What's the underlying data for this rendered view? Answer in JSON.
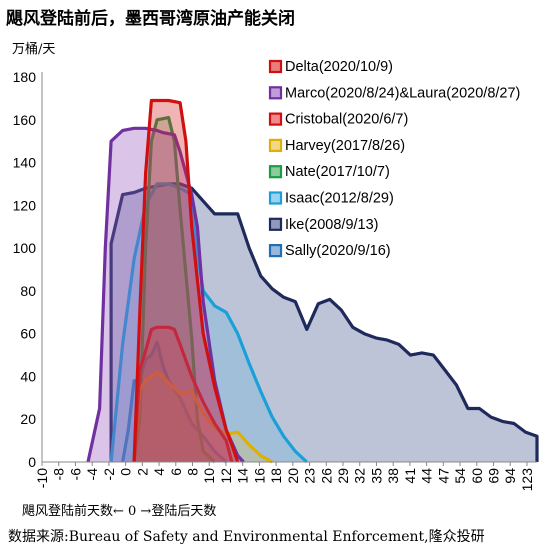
{
  "title": "飓风登陆前后，墨西哥湾原油产能关闭",
  "unit_label": "万桶/天",
  "x_axis_caption": "飓风登陆前天数← 0 →登陆后天数",
  "source": "数据来源:Bureau of Safety and Environmental Enforcement,隆众投研",
  "chart_data": {
    "type": "area",
    "title": "飓风登陆前后，墨西哥湾原油产能关闭",
    "ylabel": "万桶/天",
    "xlabel": "飓风登陆前天数← 0 →登陆后天数",
    "ylim": [
      0,
      180
    ],
    "y_ticks": [
      0,
      20,
      40,
      60,
      80,
      100,
      120,
      140,
      160,
      180
    ],
    "x_tick_labels": [
      "-10",
      "-8",
      "-6",
      "-4",
      "-2",
      "0",
      "2",
      "4",
      "6",
      "8",
      "10",
      "12",
      "14",
      "16",
      "18",
      "20",
      "23",
      "26",
      "29",
      "32",
      "35",
      "38",
      "41",
      "44",
      "47",
      "54",
      "60",
      "69",
      "94",
      "123"
    ],
    "x_positions": [
      -10,
      -9,
      -8,
      -7,
      -6,
      -5,
      -4,
      -3,
      -2,
      -1,
      0,
      1,
      2,
      3,
      4,
      5,
      6,
      7,
      8,
      9,
      10,
      11,
      12,
      13,
      14,
      15,
      16,
      17,
      18,
      19,
      20,
      21,
      22,
      23,
      24,
      25,
      26,
      27,
      28,
      29,
      30,
      31,
      32,
      33,
      34,
      35,
      36,
      37,
      38,
      39,
      40,
      41,
      42,
      43,
      44,
      45,
      46,
      47,
      48,
      49,
      50,
      51,
      52,
      53,
      54,
      55,
      56,
      57,
      58,
      59,
      60,
      61,
      62,
      63,
      64,
      65,
      66,
      67,
      68,
      69,
      70,
      71,
      72,
      73,
      74,
      75,
      76,
      77,
      78,
      79,
      80,
      81,
      82,
      83,
      84,
      85,
      86,
      87,
      88,
      89,
      90,
      91,
      92,
      93,
      94,
      95,
      96,
      97,
      98,
      99,
      100,
      101,
      102,
      103,
      104,
      105,
      106,
      107,
      108,
      109,
      110,
      111,
      112,
      113,
      114,
      115,
      116,
      117,
      118,
      119,
      120,
      121,
      122,
      123
    ],
    "grid": false,
    "legend_position": "top-right",
    "series": [
      {
        "name": "Ike(2008/9/13)",
        "color": "#1f2a5c",
        "fill": "rgba(70,85,140,0.35)",
        "points": [
          [
            -4,
            0
          ],
          [
            -4,
            102
          ],
          [
            -3,
            125
          ],
          [
            -2,
            126
          ],
          [
            -1,
            128
          ],
          [
            0,
            129
          ],
          [
            1,
            130
          ],
          [
            2,
            130
          ],
          [
            3,
            128
          ],
          [
            4,
            122
          ],
          [
            5,
            116
          ],
          [
            6,
            116
          ],
          [
            7,
            116
          ],
          [
            8,
            100
          ],
          [
            9,
            87
          ],
          [
            10,
            81
          ],
          [
            11,
            77
          ],
          [
            12,
            75
          ],
          [
            13,
            62
          ],
          [
            14,
            74
          ],
          [
            15,
            76
          ],
          [
            16,
            71
          ],
          [
            17,
            63
          ],
          [
            18,
            60
          ],
          [
            19,
            58
          ],
          [
            20,
            57
          ],
          [
            21,
            55
          ],
          [
            22,
            50
          ],
          [
            23,
            51
          ],
          [
            24,
            50
          ],
          [
            25,
            43
          ],
          [
            26,
            36
          ],
          [
            27,
            25
          ],
          [
            28,
            25
          ],
          [
            29,
            21
          ],
          [
            30,
            19
          ],
          [
            31,
            18
          ],
          [
            32,
            14
          ],
          [
            33,
            12
          ],
          [
            33,
            0
          ]
        ]
      },
      {
        "name": "Sally(2020/9/16)",
        "color": "#1f6fb2",
        "fill": "rgba(80,140,200,0.28)",
        "points": [
          [
            -3,
            0
          ],
          [
            -2.5,
            15
          ],
          [
            -2,
            38
          ],
          [
            -1.5,
            38
          ],
          [
            -1,
            48
          ],
          [
            -0.5,
            50
          ],
          [
            0,
            56
          ],
          [
            0.5,
            45
          ],
          [
            1,
            38
          ],
          [
            2,
            30
          ],
          [
            3,
            18
          ],
          [
            4,
            12
          ],
          [
            5,
            5
          ],
          [
            6,
            0
          ]
        ]
      },
      {
        "name": "Isaac(2012/8/29)",
        "color": "#1aa0d8",
        "fill": "rgba(90,180,225,0.28)",
        "points": [
          [
            -4,
            0
          ],
          [
            -3,
            55
          ],
          [
            -2,
            95
          ],
          [
            -1,
            120
          ],
          [
            0,
            130
          ],
          [
            1,
            130
          ],
          [
            2,
            128
          ],
          [
            3,
            125
          ],
          [
            3.5,
            97
          ],
          [
            4,
            80
          ],
          [
            5,
            73
          ],
          [
            6,
            70
          ],
          [
            7,
            60
          ],
          [
            8,
            46
          ],
          [
            9,
            33
          ],
          [
            10,
            21
          ],
          [
            11,
            12
          ],
          [
            12,
            5
          ],
          [
            13,
            0
          ]
        ]
      },
      {
        "name": "Nate(2017/10/7)",
        "color": "#1a9b45",
        "fill": "rgba(60,170,90,0.28)",
        "points": [
          [
            -2,
            0
          ],
          [
            -1.5,
            20
          ],
          [
            -1,
            100
          ],
          [
            -0.5,
            150
          ],
          [
            0,
            160
          ],
          [
            1,
            161
          ],
          [
            1.5,
            150
          ],
          [
            2,
            118
          ],
          [
            3,
            58
          ],
          [
            3.5,
            20
          ],
          [
            4,
            5
          ],
          [
            5,
            0
          ]
        ]
      },
      {
        "name": "Harvey(2017/8/26)",
        "color": "#e0b000",
        "fill": "rgba(230,190,60,0.25)",
        "points": [
          [
            -2,
            0
          ],
          [
            -1.5,
            34
          ],
          [
            -1,
            38
          ],
          [
            0,
            42
          ],
          [
            0.5,
            40
          ],
          [
            1,
            37
          ],
          [
            2,
            32
          ],
          [
            3,
            33
          ],
          [
            4,
            23
          ],
          [
            5,
            16
          ],
          [
            6,
            13
          ],
          [
            7,
            14
          ],
          [
            8,
            8
          ],
          [
            9,
            3
          ],
          [
            10,
            0
          ]
        ]
      },
      {
        "name": "Cristobal(2020/6/7)",
        "color": "#d01010",
        "fill": "rgba(230,60,60,0.30)",
        "points": [
          [
            -2,
            0
          ],
          [
            -1.5,
            43
          ],
          [
            -1,
            52
          ],
          [
            -0.5,
            62
          ],
          [
            0,
            63
          ],
          [
            1,
            63
          ],
          [
            1.5,
            62
          ],
          [
            2,
            55
          ],
          [
            3,
            40
          ],
          [
            4,
            28
          ],
          [
            5,
            18
          ],
          [
            6,
            10
          ],
          [
            6.5,
            0
          ]
        ]
      },
      {
        "name": "Marco(2020/8/24)&Laura(2020/8/27)",
        "color": "#7030a0",
        "fill": "rgba(150,90,190,0.35)",
        "points": [
          [
            -6,
            0
          ],
          [
            -5,
            25
          ],
          [
            -4.5,
            100
          ],
          [
            -4,
            150
          ],
          [
            -3,
            155
          ],
          [
            -2,
            156
          ],
          [
            -1,
            156
          ],
          [
            0,
            155
          ],
          [
            0.5,
            154
          ],
          [
            1.5,
            153
          ],
          [
            2,
            145
          ],
          [
            3,
            125
          ],
          [
            3.5,
            110
          ],
          [
            4,
            75
          ],
          [
            5,
            38
          ],
          [
            6,
            15
          ],
          [
            7,
            3
          ],
          [
            7.5,
            0
          ]
        ]
      },
      {
        "name": "Delta(2020/10/9)",
        "color": "#d01010",
        "fill": "rgba(215,40,40,0.35)",
        "points": [
          [
            -2,
            0
          ],
          [
            -1.5,
            70
          ],
          [
            -1,
            135
          ],
          [
            -0.5,
            169
          ],
          [
            0,
            169
          ],
          [
            1,
            169
          ],
          [
            2,
            168
          ],
          [
            2.5,
            150
          ],
          [
            3,
            110
          ],
          [
            3.5,
            85
          ],
          [
            4,
            60
          ],
          [
            5,
            35
          ],
          [
            6,
            15
          ],
          [
            6.5,
            8
          ],
          [
            7,
            0
          ]
        ]
      }
    ],
    "legend_order": [
      "Delta(2020/10/9)",
      "Marco(2020/8/24)&Laura(2020/8/27)",
      "Cristobal(2020/6/7)",
      "Harvey(2017/8/26)",
      "Nate(2017/10/7)",
      "Isaac(2012/8/29)",
      "Ike(2008/9/13)",
      "Sally(2020/9/16)"
    ]
  }
}
